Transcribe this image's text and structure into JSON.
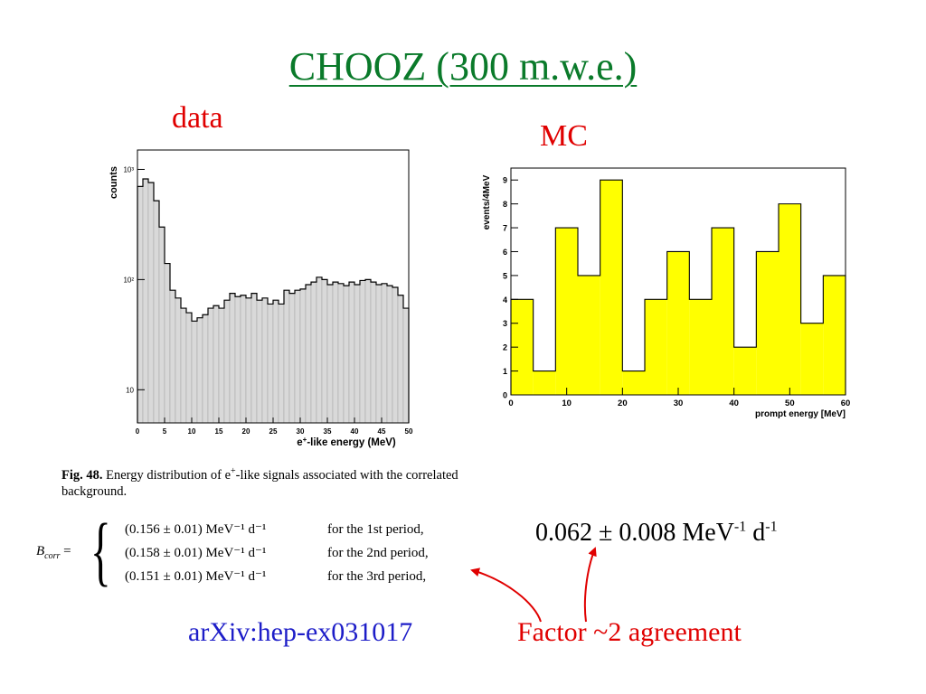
{
  "title": "CHOOZ (300 m.w.e.)",
  "label_data": "data",
  "label_mc": "MC",
  "colors": {
    "title": "#0a7a2a",
    "labels": "#e00000",
    "link": "#1d1dc8",
    "mc_fill": "#ffff00",
    "data_fill": "#d9d9d9"
  },
  "chart_data": [
    {
      "type": "bar",
      "scale": "log-y",
      "ylabel": "counts",
      "xlabel": "e+-like energy (MeV)",
      "xlim": [
        0,
        50
      ],
      "ytick_labels": [
        "10",
        "10²",
        "10³"
      ],
      "xtick_labels": [
        "0",
        "5",
        "10",
        "15",
        "20",
        "25",
        "30",
        "35",
        "40",
        "45",
        "50"
      ],
      "bin_width": 1,
      "values": [
        700,
        820,
        760,
        520,
        300,
        140,
        80,
        68,
        55,
        50,
        42,
        45,
        48,
        55,
        58,
        55,
        65,
        75,
        70,
        72,
        68,
        75,
        65,
        68,
        60,
        65,
        60,
        80,
        75,
        80,
        82,
        90,
        95,
        105,
        100,
        90,
        95,
        92,
        88,
        95,
        90,
        98,
        100,
        95,
        90,
        92,
        88,
        85,
        72,
        55
      ]
    },
    {
      "type": "bar",
      "ylabel": "events/4MeV",
      "xlabel": "prompt energy [MeV]",
      "xlim": [
        0,
        60
      ],
      "ylim": [
        0,
        9.5
      ],
      "xtick_labels": [
        "0",
        "10",
        "20",
        "30",
        "40",
        "50",
        "60"
      ],
      "ytick_labels": [
        "0",
        "1",
        "2",
        "3",
        "4",
        "5",
        "6",
        "7",
        "8",
        "9"
      ],
      "bin_width": 4,
      "values": [
        4,
        1,
        7,
        5,
        9,
        1,
        4,
        6,
        4,
        7,
        2,
        6,
        8,
        3,
        5
      ]
    }
  ],
  "caption": {
    "prefix": "Fig. 48.",
    "text": "Energy distribution of e+-like signals associated with the correlated background."
  },
  "equation": {
    "lhs": "B",
    "lhs_sub": "corr",
    "equals": "=",
    "rows": [
      {
        "value": "(0.156 ± 0.01) MeV⁻¹ d⁻¹",
        "period": "for the 1st period,"
      },
      {
        "value": "(0.158 ± 0.01) MeV⁻¹ d⁻¹",
        "period": "for the 2nd period,"
      },
      {
        "value": "(0.151 ± 0.01) MeV⁻¹ d⁻¹",
        "period": "for the 3rd period,"
      }
    ]
  },
  "mc_value": {
    "main": "0.062 ± 0.008 MeV",
    "exp1": "-1",
    "mid": " d",
    "exp2": "-1"
  },
  "arxiv": "arXiv:hep-ex031017",
  "factor": "Factor ~2 agreement"
}
